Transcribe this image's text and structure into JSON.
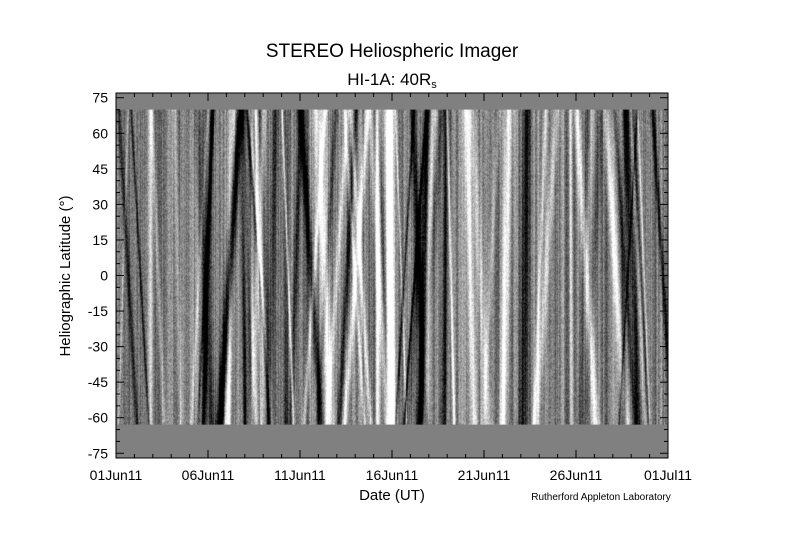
{
  "chart_data": {
    "type": "heatmap",
    "title": "STEREO Heliospheric Imager",
    "subtitle_main": "HI-1A: 40R",
    "subtitle_sub": "s",
    "xlabel": "Date (UT)",
    "ylabel": "Heliographic Latitude (°)",
    "credit": "Rutherford Appleton Laboratory",
    "x_range": [
      "2011-06-01",
      "2011-07-01"
    ],
    "y_range": [
      -77,
      77
    ],
    "x_ticks": [
      {
        "label": "01Jun11",
        "day": 0
      },
      {
        "label": "06Jun11",
        "day": 5
      },
      {
        "label": "11Jun11",
        "day": 10
      },
      {
        "label": "16Jun11",
        "day": 15
      },
      {
        "label": "21Jun11",
        "day": 20
      },
      {
        "label": "26Jun11",
        "day": 25
      },
      {
        "label": "01Jul11",
        "day": 30
      }
    ],
    "y_ticks": [
      75,
      60,
      45,
      30,
      15,
      0,
      -15,
      -30,
      -45,
      -60,
      -75
    ],
    "data_coverage_lat": [
      -63,
      70
    ],
    "no_data_color": "#808080",
    "colormap": "grayscale running-difference"
  }
}
